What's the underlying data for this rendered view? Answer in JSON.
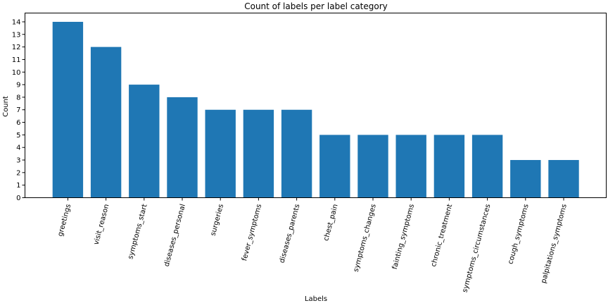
{
  "chart_data": {
    "type": "bar",
    "title": "Count of labels per label category",
    "xlabel": "Labels",
    "ylabel": "Count",
    "categories": [
      "greetings",
      "visit_reason",
      "symptoms_start",
      "diseases_personal",
      "surgeries",
      "fever_symptoms",
      "diseases_parents",
      "chest_pain",
      "symptoms_changes",
      "fainting_symptoms",
      "chronic_treatment",
      "symptoms_circumstances",
      "cough_symptoms",
      "palpitations_symptoms"
    ],
    "values": [
      14,
      12,
      9,
      8,
      7,
      7,
      7,
      5,
      5,
      5,
      5,
      5,
      3,
      3
    ],
    "ylim": [
      0,
      14.7
    ],
    "yticks": [
      0,
      1,
      2,
      3,
      4,
      5,
      6,
      7,
      8,
      9,
      10,
      11,
      12,
      13,
      14
    ],
    "grid": false,
    "bar_color": "#1f77b4"
  }
}
